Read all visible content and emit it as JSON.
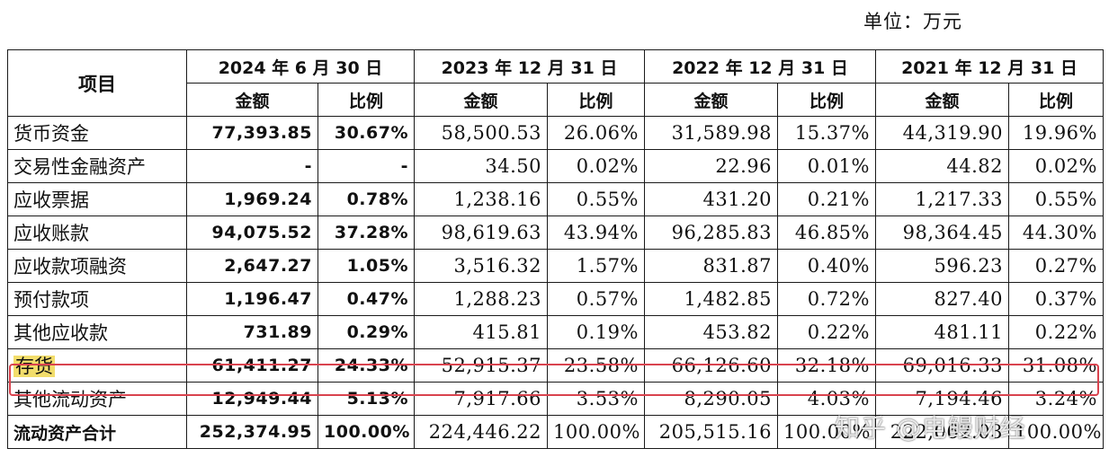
{
  "unit_note": "单位：万元",
  "header": {
    "item": "项目",
    "periods": [
      "2024 年 6 月 30 日",
      "2023 年 12 月 31 日",
      "2022 年 12 月 31 日",
      "2021 年 12 月 31 日"
    ],
    "amount": "金额",
    "ratio": "比例"
  },
  "rows": [
    {
      "label": "货币资金",
      "values": [
        "77,393.85",
        "30.67%",
        "58,500.53",
        "26.06%",
        "31,589.98",
        "15.37%",
        "44,319.90",
        "19.96%"
      ]
    },
    {
      "label": "交易性金融资产",
      "values": [
        "-",
        "-",
        "34.50",
        "0.02%",
        "22.96",
        "0.01%",
        "44.82",
        "0.02%"
      ]
    },
    {
      "label": "应收票据",
      "values": [
        "1,969.24",
        "0.78%",
        "1,238.16",
        "0.55%",
        "431.20",
        "0.21%",
        "1,217.33",
        "0.55%"
      ]
    },
    {
      "label": "应收账款",
      "values": [
        "94,075.52",
        "37.28%",
        "98,619.63",
        "43.94%",
        "96,285.83",
        "46.85%",
        "98,364.45",
        "44.30%"
      ]
    },
    {
      "label": "应收款项融资",
      "values": [
        "2,647.27",
        "1.05%",
        "3,516.32",
        "1.57%",
        "831.87",
        "0.40%",
        "596.23",
        "0.27%"
      ]
    },
    {
      "label": "预付款项",
      "values": [
        "1,196.47",
        "0.47%",
        "1,288.23",
        "0.57%",
        "1,482.85",
        "0.72%",
        "827.40",
        "0.37%"
      ]
    },
    {
      "label": "其他应收款",
      "values": [
        "731.89",
        "0.29%",
        "415.81",
        "0.19%",
        "453.82",
        "0.22%",
        "481.11",
        "0.22%"
      ]
    },
    {
      "label": "存货",
      "values": [
        "61,411.27",
        "24.33%",
        "52,915.37",
        "23.58%",
        "66,126.60",
        "32.18%",
        "69,016.33",
        "31.08%"
      ]
    },
    {
      "label": "其他流动资产",
      "values": [
        "12,949.44",
        "5.13%",
        "7,917.66",
        "3.53%",
        "8,290.05",
        "4.03%",
        "7,194.46",
        "3.24%"
      ]
    },
    {
      "label": "流动资产合计",
      "values": [
        "252,374.95",
        "100.00%",
        "224,446.22",
        "100.00%",
        "205,515.16",
        "100.00%",
        "222,062.03",
        "100.00%"
      ]
    }
  ],
  "watermark": "知乎 @电鳗财经",
  "colors": {
    "highlight": "#f2dd6b",
    "box": "#d9434e"
  }
}
